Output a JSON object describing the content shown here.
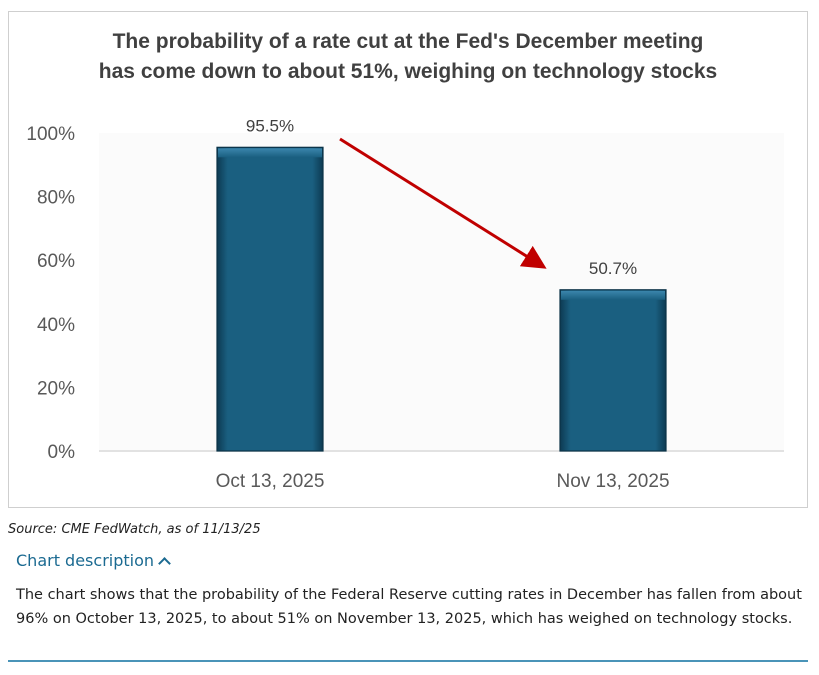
{
  "chart_data": {
    "type": "bar",
    "title_lines": [
      "The probability of a rate cut at the Fed's December meeting",
      "has come down to about 51%, weighing on technology stocks"
    ],
    "categories": [
      "Oct 13, 2025",
      "Nov 13, 2025"
    ],
    "values": [
      95.5,
      50.7
    ],
    "data_labels": [
      "95.5%",
      "50.7%"
    ],
    "y_ticks": [
      0,
      20,
      40,
      60,
      80,
      100
    ],
    "y_tick_labels": [
      "0%",
      "20%",
      "40%",
      "60%",
      "80%",
      "100%"
    ],
    "ylim": [
      0,
      100
    ],
    "grid": false,
    "annotation": "red arrow pointing down from first bar to second bar",
    "colors": {
      "bar": "#1a5f80",
      "bar_dark": "#0d3a52",
      "bar_light": "#3b86ad",
      "arrow": "#c00000",
      "text": "#595959",
      "title": "#404040"
    }
  },
  "source": "Source: CME FedWatch, as of 11/13/25",
  "description": {
    "toggle_label": "Chart description",
    "toggle_icon": "chevron-up-icon",
    "text": "The chart shows that the probability of the Federal Reserve cutting rates in December has fallen from about 96% on October 13, 2025, to about 51% on November 13, 2025, which has weighed on technology stocks."
  },
  "accent_color": "#1b6a91"
}
